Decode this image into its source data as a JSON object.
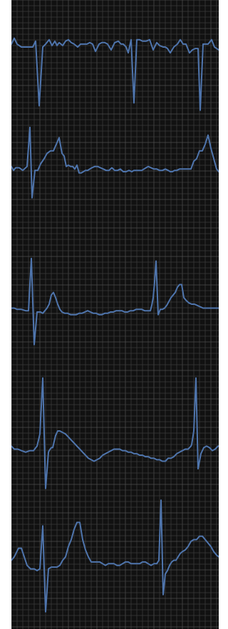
{
  "chart_data": {
    "type": "line",
    "title": "",
    "xlabel": "",
    "ylabel": "",
    "grid": true,
    "legend": "none",
    "colors": {
      "background": "#111111",
      "minor_grid": "#3a3a3a",
      "major_grid": "#4d4d4d",
      "trace": "#4f75ad",
      "page": "#ffffff"
    },
    "leads": [
      {
        "xlim": [
          0,
          291
        ],
        "ylim": [
          -50,
          30
        ],
        "x": [
          0,
          4,
          8,
          14,
          20,
          26,
          30,
          34,
          39,
          44,
          48,
          53,
          57,
          61,
          64,
          67,
          72,
          76,
          80,
          84,
          88,
          93,
          97,
          101,
          106,
          110,
          114,
          118,
          123,
          127,
          131,
          135,
          140,
          145,
          150,
          154,
          157,
          161,
          164,
          168,
          172,
          176,
          180,
          184,
          189,
          194,
          199,
          204,
          208,
          213,
          216,
          219,
          223,
          228,
          233,
          237,
          241,
          245,
          250,
          254,
          258,
          262,
          265,
          269,
          273,
          276,
          281,
          285,
          291
        ],
        "y": [
          0,
          4,
          0,
          -2,
          -2,
          -2,
          -2,
          2,
          -42,
          -2,
          0,
          3,
          -1,
          2,
          -1,
          1,
          -1,
          2,
          3,
          1,
          0,
          -2,
          0,
          0,
          0,
          1,
          0,
          -5,
          0,
          1,
          1,
          0,
          -4,
          1,
          2,
          0,
          0,
          -2,
          -6,
          3,
          -40,
          3,
          3,
          2,
          2,
          3,
          -4,
          1,
          -1,
          -2,
          -2,
          -3,
          -6,
          -2,
          0,
          3,
          0,
          0,
          -6,
          -4,
          -3,
          -3,
          -45,
          0,
          0,
          0,
          3,
          -2,
          -4
        ]
      },
      {
        "xlim": [
          0,
          291
        ],
        "ylim": [
          -60,
          30
        ],
        "x": [
          0,
          3,
          6,
          11,
          16,
          22,
          26,
          29,
          33,
          37,
          41,
          46,
          50,
          55,
          59,
          63,
          67,
          71,
          74,
          77,
          80,
          83,
          86,
          89,
          92,
          95,
          98,
          101,
          104,
          107,
          110,
          113,
          117,
          121,
          125,
          129,
          133,
          137,
          141,
          145,
          149,
          153,
          157,
          161,
          165,
          169,
          172,
          175,
          179,
          183,
          186,
          189,
          192,
          196,
          200,
          204,
          208,
          212,
          216,
          220,
          223,
          226,
          229,
          232,
          236,
          240,
          244,
          248,
          252,
          256,
          260,
          264,
          268,
          272,
          276,
          280,
          284,
          288,
          291
        ],
        "y": [
          -2,
          -5,
          -3,
          -3,
          -5,
          -2,
          28,
          -26,
          -5,
          -5,
          0,
          4,
          8,
          10,
          10,
          15,
          20,
          8,
          6,
          -2,
          -1,
          -2,
          -2,
          -4,
          -1,
          -7,
          -7,
          -6,
          -5,
          -5,
          -4,
          -3,
          -2,
          -2,
          -3,
          -4,
          -5,
          -5,
          -3,
          -5,
          -5,
          -4,
          -6,
          -6,
          -5,
          -6,
          -5,
          -5,
          -5,
          -5,
          -4,
          -3,
          -2,
          -3,
          -4,
          -4,
          -5,
          -5,
          -4,
          -5,
          -6,
          -6,
          -5,
          -5,
          -4,
          -4,
          -4,
          -4,
          -4,
          2,
          4,
          10,
          10,
          15,
          22,
          12,
          4,
          -4,
          -6
        ]
      },
      {
        "xlim": [
          0,
          291
        ],
        "ylim": [
          -45,
          45
        ],
        "x": [
          0,
          4,
          8,
          14,
          20,
          24,
          28,
          32,
          36,
          38,
          41,
          44,
          47,
          50,
          53,
          56,
          59,
          62,
          65,
          68,
          71,
          75,
          79,
          83,
          87,
          91,
          95,
          99,
          103,
          107,
          111,
          115,
          119,
          123,
          127,
          131,
          135,
          139,
          143,
          147,
          151,
          155,
          159,
          163,
          167,
          171,
          175,
          179,
          183,
          187,
          191,
          195,
          197,
          199,
          201,
          203,
          206,
          209,
          212,
          215,
          218,
          221,
          224,
          227,
          230,
          233,
          236,
          239,
          242,
          245,
          249,
          253,
          257,
          261,
          265,
          269,
          273,
          277,
          281,
          285,
          289,
          291
        ],
        "y": [
          0,
          0,
          -1,
          -1,
          -2,
          -2,
          38,
          -28,
          -3,
          -3,
          -3,
          -4,
          -2,
          0,
          3,
          10,
          12,
          8,
          3,
          -1,
          -3,
          -4,
          -4,
          -5,
          -5,
          -5,
          -4,
          -4,
          -3,
          -2,
          -3,
          -4,
          -4,
          -5,
          -5,
          -4,
          -4,
          -3,
          -3,
          -2,
          -2,
          -2,
          -3,
          -3,
          -2,
          -2,
          -1,
          -1,
          -1,
          -2,
          -2,
          -2,
          2,
          8,
          20,
          36,
          -5,
          -1,
          -1,
          0,
          2,
          5,
          8,
          10,
          12,
          16,
          18,
          18,
          8,
          6,
          4,
          3,
          3,
          2,
          1,
          0,
          0,
          0,
          0,
          0,
          0,
          0
        ]
      },
      {
        "xlim": [
          0,
          291
        ],
        "ylim": [
          -30,
          50
        ],
        "x": [
          0,
          4,
          9,
          14,
          20,
          26,
          31,
          36,
          40,
          44,
          48,
          52,
          53,
          56,
          58,
          60,
          62,
          65,
          68,
          72,
          76,
          80,
          84,
          88,
          92,
          96,
          100,
          104,
          108,
          112,
          116,
          120,
          124,
          128,
          132,
          136,
          140,
          144,
          148,
          152,
          156,
          160,
          164,
          168,
          172,
          176,
          180,
          184,
          188,
          192,
          196,
          200,
          204,
          208,
          212,
          216,
          220,
          224,
          228,
          232,
          236,
          240,
          244,
          248,
          250,
          252,
          253,
          256,
          259,
          262,
          266,
          270,
          274,
          278,
          282,
          286,
          290,
          291
        ],
        "y": [
          0,
          -2,
          -2,
          -3,
          -4,
          -3,
          -3,
          0,
          8,
          45,
          -28,
          -4,
          -3,
          -1,
          -1,
          3,
          7,
          10,
          10,
          9,
          8,
          6,
          4,
          2,
          0,
          -2,
          -4,
          -6,
          -8,
          -9,
          -10,
          -9,
          -8,
          -6,
          -5,
          -4,
          -3,
          -2,
          -2,
          -2,
          -3,
          -3,
          -4,
          -4,
          -5,
          -5,
          -6,
          -6,
          -7,
          -7,
          -8,
          -8,
          -9,
          -9,
          -10,
          -10,
          -8,
          -8,
          -7,
          -5,
          -4,
          -3,
          -2,
          -2,
          -1,
          0,
          1,
          10,
          45,
          -15,
          -5,
          -1,
          0,
          -1,
          -3,
          -2,
          0,
          0
        ]
      },
      {
        "xlim": [
          0,
          291
        ],
        "ylim": [
          -40,
          40
        ],
        "x": [
          0,
          4,
          10,
          14,
          18,
          22,
          27,
          32,
          36,
          40,
          44,
          48,
          52,
          56,
          60,
          64,
          68,
          72,
          76,
          80,
          84,
          88,
          92,
          96,
          100,
          104,
          108,
          112,
          116,
          120,
          124,
          128,
          132,
          136,
          140,
          144,
          148,
          152,
          156,
          160,
          164,
          168,
          172,
          176,
          180,
          184,
          188,
          192,
          196,
          200,
          204,
          207,
          210,
          213,
          216,
          219,
          222,
          225,
          228,
          231,
          234,
          237,
          240,
          244,
          248,
          252,
          256,
          260,
          264,
          268,
          272,
          276,
          280,
          284,
          288,
          291
        ],
        "y": [
          0,
          2,
          7,
          7,
          2,
          -3,
          -5,
          -5,
          -6,
          -5,
          20,
          -30,
          -5,
          -4,
          -4,
          -4,
          -3,
          0,
          2,
          8,
          12,
          18,
          22,
          22,
          12,
          6,
          2,
          -1,
          -1,
          -1,
          -1,
          -2,
          -3,
          -2,
          -2,
          -2,
          -3,
          -3,
          -2,
          -1,
          -1,
          -2,
          -2,
          -2,
          -2,
          -1,
          -1,
          -2,
          -3,
          -2,
          -2,
          0,
          35,
          -20,
          -8,
          -6,
          -3,
          -1,
          0,
          0,
          2,
          4,
          5,
          6,
          8,
          11,
          12,
          12,
          14,
          14,
          12,
          10,
          8,
          5,
          3,
          2
        ]
      }
    ]
  }
}
